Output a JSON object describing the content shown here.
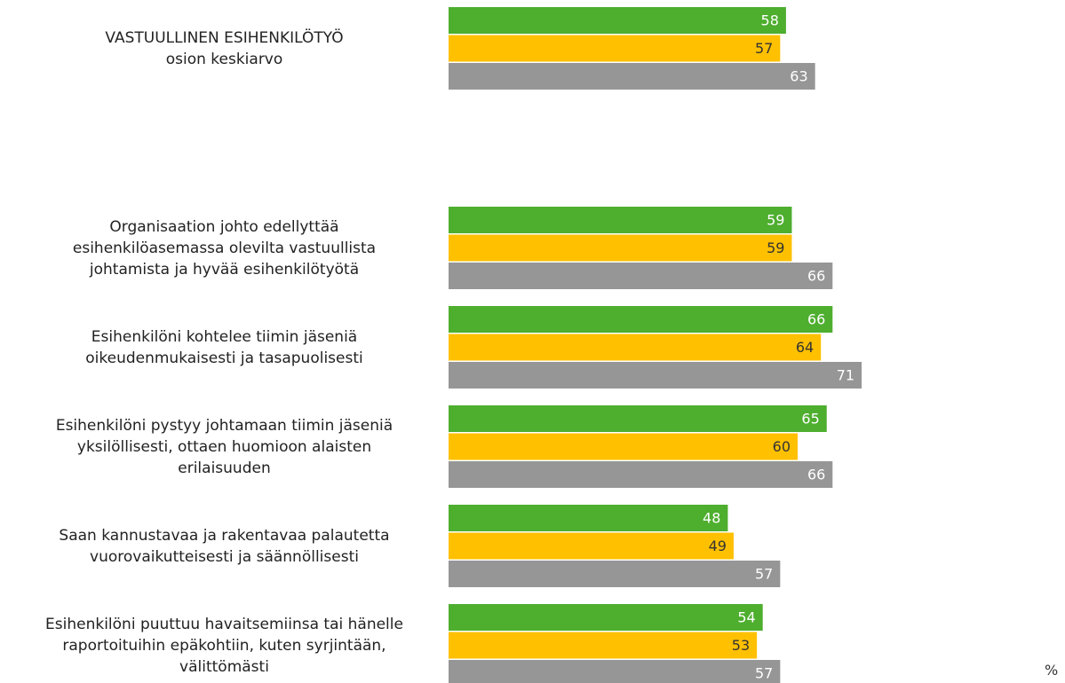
{
  "chart_data": {
    "type": "hbar",
    "categories": [
      "VASTUULLINEN ESIHENKILÖTYÖ\nosion keskiarvo",
      "Organisaation johto edellyttää\nesihenkilöasemassa olevilta vastuullista\njohtamista ja hyvää esihenkilötyötä",
      "Esihenkilöni kohtelee tiimin jäseniä\noikeudenmukaisesti ja tasapuolisesti",
      "Esihenkilöni pystyy johtamaan tiimin jäseniä\nyksilöllisesti, ottaen huomioon alaisten\nerilaisuuden",
      "Saan kannustavaa ja rakentavaa palautetta\nvuorovaikutteisesti ja säännöllisesti",
      "Esihenkilöni puuttuu havaitsemiinsa tai hänelle\nraportoituihin epäkohtiin, kuten syrjintään,\nvälittömästi"
    ],
    "series": [
      {
        "color": "#4eae2e",
        "label_color": "#ffffff",
        "values": [
          58,
          59,
          66,
          65,
          48,
          54
        ]
      },
      {
        "color": "#ffc000",
        "label_color": "#333333",
        "values": [
          57,
          59,
          64,
          60,
          49,
          53
        ]
      },
      {
        "color": "#969696",
        "label_color": "#ffffff",
        "values": [
          63,
          66,
          71,
          66,
          57,
          57
        ]
      }
    ],
    "xlim": [
      0,
      100
    ],
    "unit": "%"
  }
}
